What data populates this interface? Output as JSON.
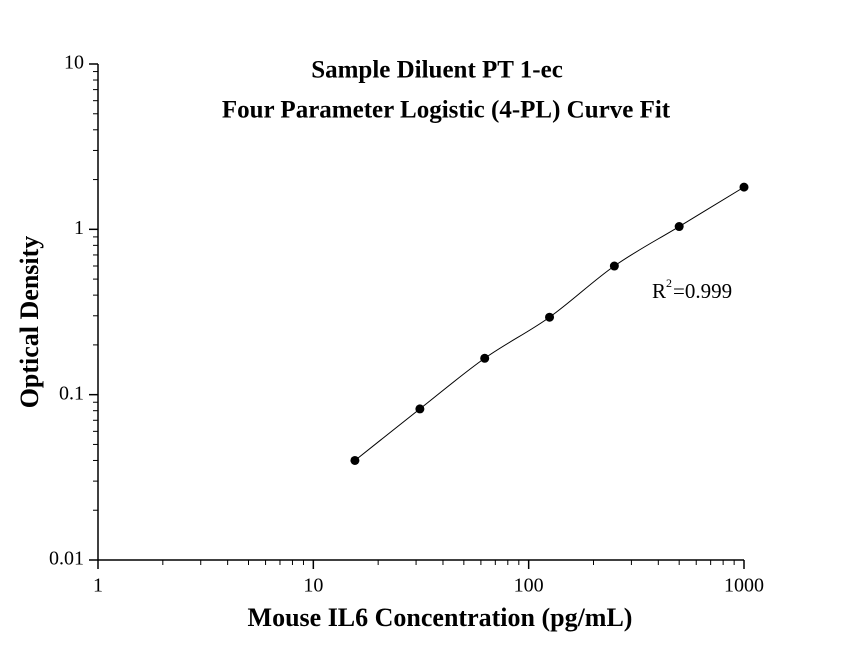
{
  "chart_data": {
    "type": "scatter",
    "title": "Sample Diluent PT 1-ec",
    "subtitle": "Four Parameter Logistic (4-PL) Curve Fit",
    "x_label": "Mouse IL6 Concentration (pg/mL)",
    "y_label": "Optical Density",
    "x": [
      15.6,
      31.25,
      62.5,
      125,
      250,
      500,
      1000
    ],
    "series": [
      {
        "color": "#000000",
        "values": [
          0.04,
          0.082,
          0.166,
          0.294,
          0.6,
          1.04,
          1.8
        ]
      }
    ],
    "xlim": [
      1,
      1000
    ],
    "ylim": [
      0.01,
      10
    ],
    "xticks": [
      1,
      10,
      100,
      1000
    ],
    "yticks": [
      0.01,
      0.1,
      1,
      10
    ],
    "xscale": "log",
    "yscale": "log",
    "annotation": {
      "base": "R",
      "superscript": "2",
      "text": "=0.999"
    }
  }
}
